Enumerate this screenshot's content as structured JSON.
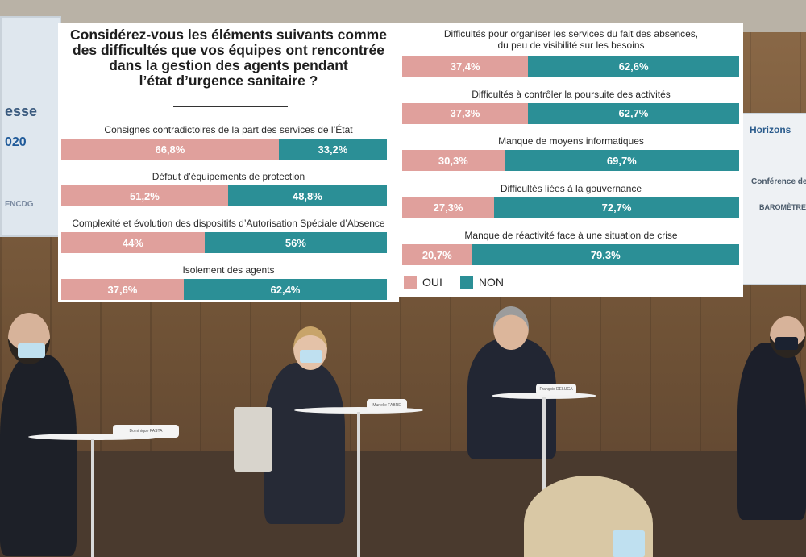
{
  "chart_data": [
    {
      "type": "bar",
      "orientation": "horizontal-stacked-100",
      "title": "Considérez-vous les éléments suivants comme des difficultés que vos équipes ont rencontrée dans la gestion des agents pendant l’état d’urgence sanitaire ?",
      "title_lines": [
        "Considérez-vous les éléments suivants comme",
        "des difficultés que vos équipes ont rencontrée",
        "dans la gestion des agents pendant",
        "l’état d’urgence sanitaire ?"
      ],
      "categories": [
        "Consignes contradictoires de la part des services de l’État",
        "Défaut d’équipements de protection",
        "Complexité et évolution des dispositifs d’Autorisation Spéciale d’Absence",
        "Isolement des agents"
      ],
      "series": [
        {
          "name": "OUI",
          "values": [
            66.8,
            51.2,
            44,
            37.6
          ],
          "labels": [
            "66,8%",
            "51,2%",
            "44%",
            "37,6%"
          ]
        },
        {
          "name": "NON",
          "values": [
            33.2,
            48.8,
            56,
            62.4
          ],
          "labels": [
            "33,2%",
            "48,8%",
            "56%",
            "62,4%"
          ]
        }
      ]
    },
    {
      "type": "bar",
      "orientation": "horizontal-stacked-100",
      "categories": [
        "Difficultés pour organiser les services du fait des absences,\ndu peu de visibilité sur les besoins",
        "Difficultés à contrôler la poursuite des activités",
        "Manque de moyens informatiques",
        "Difficultés liées à la gouvernance",
        "Manque de réactivité face à une situation de crise"
      ],
      "series": [
        {
          "name": "OUI",
          "values": [
            37.4,
            37.3,
            30.3,
            27.3,
            20.7
          ],
          "labels": [
            "37,4%",
            "37,3%",
            "30,3%",
            "27,3%",
            "20,7%"
          ]
        },
        {
          "name": "NON",
          "values": [
            62.6,
            62.7,
            69.7,
            72.7,
            79.3
          ],
          "labels": [
            "62,6%",
            "62,7%",
            "69,7%",
            "72,7%",
            "79,3%"
          ]
        }
      ]
    }
  ],
  "legend": [
    {
      "name": "OUI",
      "color": "#e0a09c"
    },
    {
      "name": "NON",
      "color": "#2b8f96"
    }
  ],
  "colors": {
    "oui": "#e0a09c",
    "non": "#2b8f96"
  },
  "background": {
    "screen_left_text": "esse",
    "screen_left_year": "020",
    "screen_left_logo": "FNCDG",
    "screen_right_brand": "Horizons",
    "screen_right_title": "Conférence de",
    "screen_right_subtitle": "BAROMÈTRE",
    "nameplates": [
      "Dominique PASTA",
      "Murielle FABRE",
      "François DELUGA"
    ]
  }
}
